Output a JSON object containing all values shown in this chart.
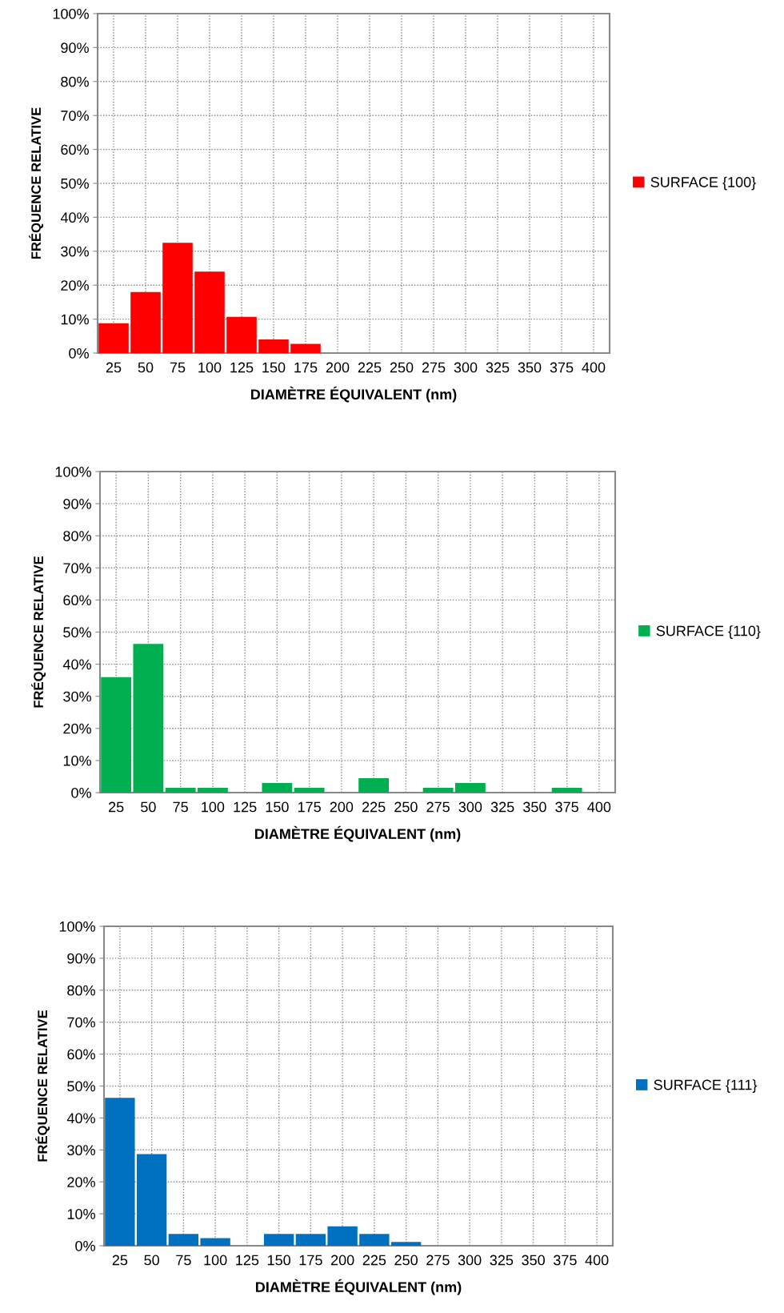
{
  "chart_data": [
    {
      "type": "bar",
      "categories": [
        "25",
        "50",
        "75",
        "100",
        "125",
        "150",
        "175",
        "200",
        "225",
        "250",
        "275",
        "300",
        "325",
        "350",
        "375",
        "400"
      ],
      "xlabel": "DIAMÈTRE ÉQUIVALENT (nm)",
      "ylabel": "FRÉQUENCE RELATIVE",
      "ylim": [
        0,
        100
      ],
      "yticks": [
        {
          "value": 0,
          "label": "0%"
        },
        {
          "value": 10,
          "label": "10%"
        },
        {
          "value": 20,
          "label": "20%"
        },
        {
          "value": 30,
          "label": "30%"
        },
        {
          "value": 40,
          "label": "40%"
        },
        {
          "value": 50,
          "label": "50%"
        },
        {
          "value": 60,
          "label": "60%"
        },
        {
          "value": 70,
          "label": "70%"
        },
        {
          "value": 80,
          "label": "80%"
        },
        {
          "value": 90,
          "label": "90%"
        },
        {
          "value": 100,
          "label": "100%"
        }
      ],
      "grid": true,
      "legend": "right",
      "series": [
        {
          "name": "SURFACE {100}",
          "color": "#ff0000",
          "values": [
            8.8,
            18,
            32.5,
            24,
            10.7,
            4,
            2.7,
            null,
            null,
            null,
            null,
            null,
            null,
            null,
            null,
            null
          ]
        }
      ]
    },
    {
      "type": "bar",
      "categories": [
        "25",
        "50",
        "75",
        "100",
        "125",
        "150",
        "175",
        "200",
        "225",
        "250",
        "275",
        "300",
        "325",
        "350",
        "375",
        "400"
      ],
      "xlabel": "DIAMÈTRE ÉQUIVALENT (nm)",
      "ylabel": "FRÉQUENCE RELATIVE",
      "ylim": [
        0,
        100
      ],
      "yticks": [
        {
          "value": 0,
          "label": "0%"
        },
        {
          "value": 10,
          "label": "10%"
        },
        {
          "value": 20,
          "label": "20%"
        },
        {
          "value": 30,
          "label": "30%"
        },
        {
          "value": 40,
          "label": "40%"
        },
        {
          "value": 50,
          "label": "50%"
        },
        {
          "value": 60,
          "label": "60%"
        },
        {
          "value": 70,
          "label": "70%"
        },
        {
          "value": 80,
          "label": "80%"
        },
        {
          "value": 90,
          "label": "90%"
        },
        {
          "value": 100,
          "label": "100%"
        }
      ],
      "grid": true,
      "legend": "right",
      "series": [
        {
          "name": "SURFACE {110}",
          "color": "#00b050",
          "values": [
            36,
            46.3,
            1.5,
            1.5,
            null,
            3,
            1.5,
            null,
            4.5,
            null,
            1.5,
            3,
            null,
            null,
            1.5,
            null
          ]
        }
      ]
    },
    {
      "type": "bar",
      "categories": [
        "25",
        "50",
        "75",
        "100",
        "125",
        "150",
        "175",
        "200",
        "225",
        "250",
        "275",
        "300",
        "325",
        "350",
        "375",
        "400"
      ],
      "xlabel": "DIAMÈTRE ÉQUIVALENT (nm)",
      "ylabel": "FRÉQUENCE RELATIVE",
      "ylim": [
        0,
        100
      ],
      "yticks": [
        {
          "value": 0,
          "label": "0%"
        },
        {
          "value": 10,
          "label": "10%"
        },
        {
          "value": 20,
          "label": "20%"
        },
        {
          "value": 30,
          "label": "30%"
        },
        {
          "value": 40,
          "label": "40%"
        },
        {
          "value": 50,
          "label": "50%"
        },
        {
          "value": 60,
          "label": "60%"
        },
        {
          "value": 70,
          "label": "70%"
        },
        {
          "value": 80,
          "label": "80%"
        },
        {
          "value": 90,
          "label": "90%"
        },
        {
          "value": 100,
          "label": "100%"
        }
      ],
      "grid": true,
      "legend": "right",
      "series": [
        {
          "name": "SURFACE {111}",
          "color": "#0070c0",
          "values": [
            46.3,
            28.7,
            3.7,
            2.4,
            null,
            3.7,
            3.7,
            6.1,
            3.7,
            1.2,
            null,
            null,
            null,
            null,
            null,
            null
          ]
        }
      ]
    }
  ]
}
